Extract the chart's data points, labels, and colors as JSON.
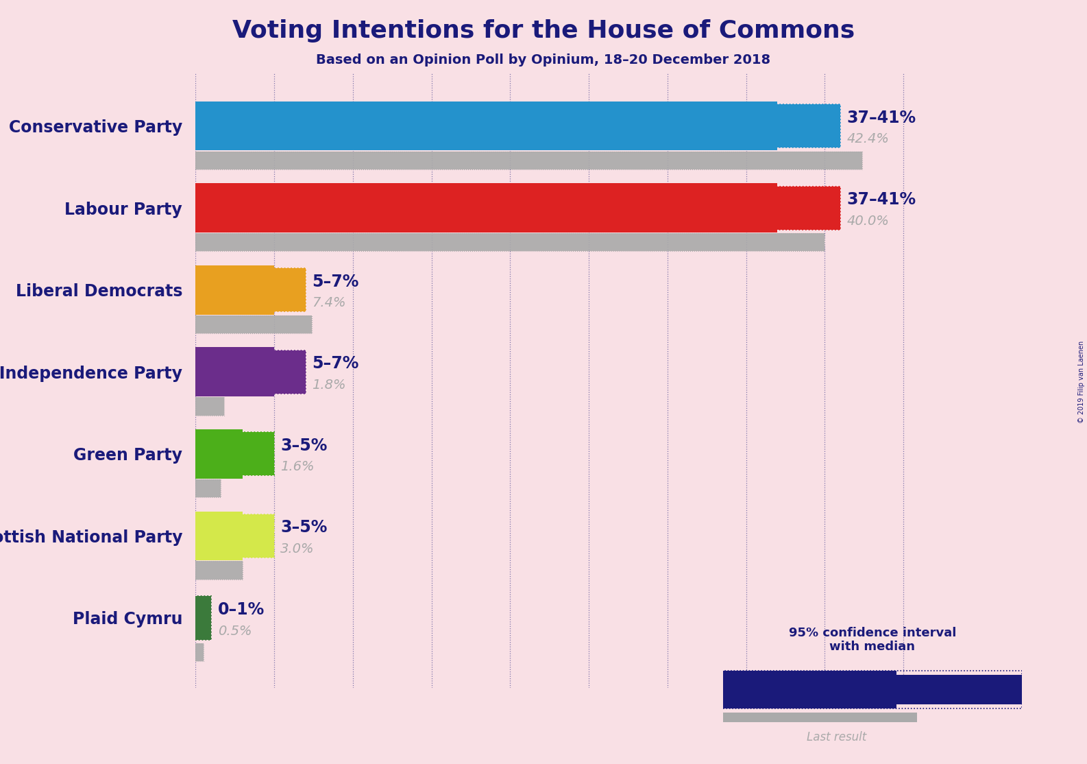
{
  "title": "Voting Intentions for the House of Commons",
  "subtitle": "Based on an Opinion Poll by Opinium, 18–20 December 2018",
  "copyright": "© 2019 Filip van Laenen",
  "background_color": "#f9e0e5",
  "title_color": "#1a1a7a",
  "subtitle_color": "#1a1a7a",
  "parties": [
    "Conservative Party",
    "Labour Party",
    "Liberal Democrats",
    "UK Independence Party",
    "Green Party",
    "Scottish National Party",
    "Plaid Cymru"
  ],
  "ci_low": [
    37,
    37,
    5,
    5,
    3,
    3,
    0
  ],
  "ci_high": [
    41,
    41,
    7,
    7,
    5,
    5,
    1
  ],
  "last_result": [
    42.4,
    40.0,
    7.4,
    1.8,
    1.6,
    3.0,
    0.5
  ],
  "colors": [
    "#2492CC",
    "#DD2222",
    "#E8A020",
    "#6B2D8B",
    "#4CAF1A",
    "#D4E84A",
    "#3B7A3B"
  ],
  "label_ci": [
    "37–41%",
    "37–41%",
    "5–7%",
    "5–7%",
    "3–5%",
    "3–5%",
    "0–1%"
  ],
  "label_last": [
    "42.4%",
    "40.0%",
    "7.4%",
    "1.8%",
    "1.6%",
    "3.0%",
    "0.5%"
  ],
  "dark_navy": "#1a1a7a",
  "gray_color": "#aaaaaa",
  "xmax": 47
}
